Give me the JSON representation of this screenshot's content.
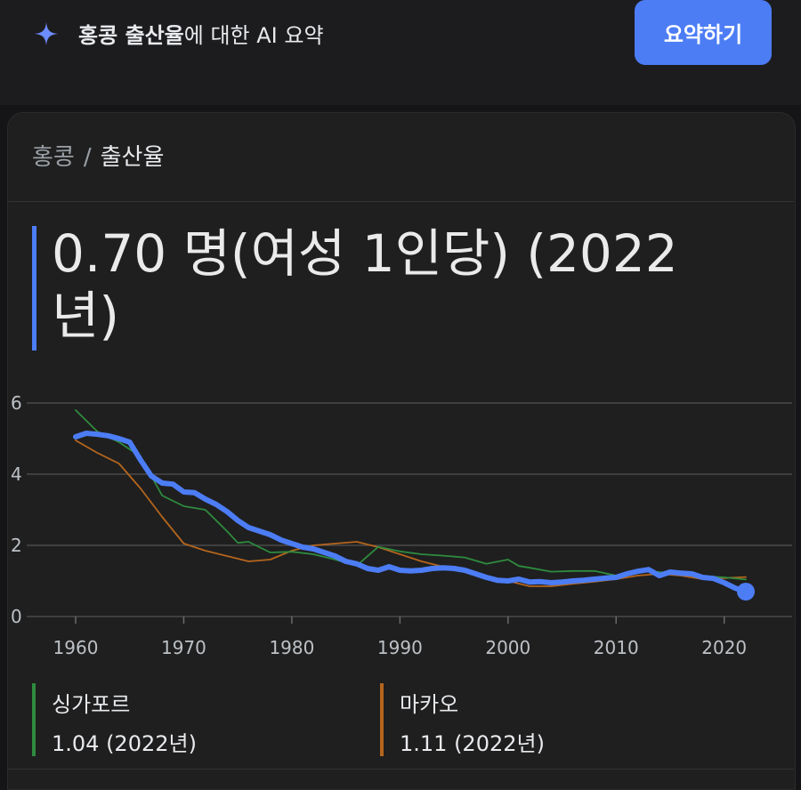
{
  "header": {
    "ai_title_bold": "홍콩 출산율",
    "ai_title_rest": "에 대한 AI 요약",
    "summarize_button": "요약하기",
    "sparkle_icon": "sparkle-icon",
    "accent_color": "#4c7df5"
  },
  "breadcrumb": {
    "first": "홍콩",
    "separator": "/",
    "second": "출산율"
  },
  "headline": {
    "value_text": "0.70 명(여성 1인당) (2022년)"
  },
  "legend": [
    {
      "name": "싱가포르",
      "value": "1.04 (2022년)",
      "color": "#2e8b3e"
    },
    {
      "name": "마카오",
      "value": "1.11 (2022년)",
      "color": "#b5651d"
    }
  ],
  "chart_data": {
    "type": "line",
    "title": "",
    "xlabel": "",
    "ylabel": "",
    "xlim": [
      1960,
      2022
    ],
    "ylim": [
      0,
      6
    ],
    "y_ticks": [
      "0",
      "2",
      "4",
      "6"
    ],
    "x_ticks": [
      "1960",
      "1970",
      "1980",
      "1990",
      "2000",
      "2010",
      "2020"
    ],
    "grid": true,
    "series": [
      {
        "name": "홍콩",
        "color": "#4c7df5",
        "x": [
          1960,
          1961,
          1962,
          1963,
          1964,
          1965,
          1966,
          1967,
          1968,
          1969,
          1970,
          1971,
          1972,
          1973,
          1974,
          1975,
          1976,
          1977,
          1978,
          1979,
          1980,
          1981,
          1982,
          1983,
          1984,
          1985,
          1986,
          1987,
          1988,
          1989,
          1990,
          1991,
          1992,
          1993,
          1994,
          1995,
          1996,
          1997,
          1998,
          1999,
          2000,
          2001,
          2002,
          2003,
          2004,
          2005,
          2006,
          2007,
          2008,
          2009,
          2010,
          2011,
          2012,
          2013,
          2014,
          2015,
          2016,
          2017,
          2018,
          2019,
          2020,
          2021,
          2022
        ],
        "y": [
          5.05,
          5.15,
          5.12,
          5.08,
          5.0,
          4.9,
          4.4,
          3.95,
          3.75,
          3.72,
          3.5,
          3.48,
          3.3,
          3.15,
          2.95,
          2.7,
          2.5,
          2.4,
          2.3,
          2.15,
          2.05,
          1.95,
          1.9,
          1.8,
          1.7,
          1.55,
          1.48,
          1.35,
          1.3,
          1.4,
          1.3,
          1.28,
          1.3,
          1.35,
          1.37,
          1.35,
          1.3,
          1.2,
          1.1,
          1.02,
          1.0,
          1.05,
          0.97,
          0.98,
          0.95,
          0.97,
          1.0,
          1.02,
          1.05,
          1.08,
          1.1,
          1.2,
          1.27,
          1.32,
          1.15,
          1.25,
          1.22,
          1.2,
          1.1,
          1.07,
          0.95,
          0.8,
          0.7
        ]
      },
      {
        "name": "싱가포르",
        "color": "#2e8b3e",
        "x": [
          1960,
          1962,
          1964,
          1966,
          1968,
          1970,
          1972,
          1974,
          1975,
          1976,
          1978,
          1980,
          1982,
          1984,
          1986,
          1988,
          1990,
          1992,
          1994,
          1996,
          1998,
          2000,
          2001,
          2002,
          2004,
          2006,
          2008,
          2010,
          2012,
          2014,
          2016,
          2018,
          2020,
          2022
        ],
        "y": [
          5.8,
          5.2,
          4.9,
          4.5,
          3.4,
          3.1,
          3.0,
          2.4,
          2.07,
          2.1,
          1.8,
          1.82,
          1.75,
          1.6,
          1.43,
          1.96,
          1.83,
          1.75,
          1.71,
          1.66,
          1.48,
          1.6,
          1.42,
          1.37,
          1.26,
          1.28,
          1.28,
          1.15,
          1.29,
          1.25,
          1.2,
          1.14,
          1.1,
          1.04
        ]
      },
      {
        "name": "마카오",
        "color": "#b5651d",
        "x": [
          1960,
          1962,
          1964,
          1966,
          1968,
          1970,
          1972,
          1974,
          1976,
          1978,
          1980,
          1982,
          1984,
          1986,
          1988,
          1990,
          1992,
          1994,
          1996,
          1998,
          2000,
          2002,
          2004,
          2006,
          2008,
          2010,
          2012,
          2014,
          2016,
          2018,
          2020,
          2022
        ],
        "y": [
          4.95,
          4.6,
          4.3,
          3.6,
          2.8,
          2.05,
          1.85,
          1.7,
          1.55,
          1.6,
          1.85,
          2.0,
          2.05,
          2.1,
          1.95,
          1.75,
          1.55,
          1.4,
          1.25,
          1.1,
          1.0,
          0.85,
          0.85,
          0.92,
          0.98,
          1.05,
          1.15,
          1.2,
          1.15,
          1.05,
          1.08,
          1.11
        ]
      }
    ]
  }
}
